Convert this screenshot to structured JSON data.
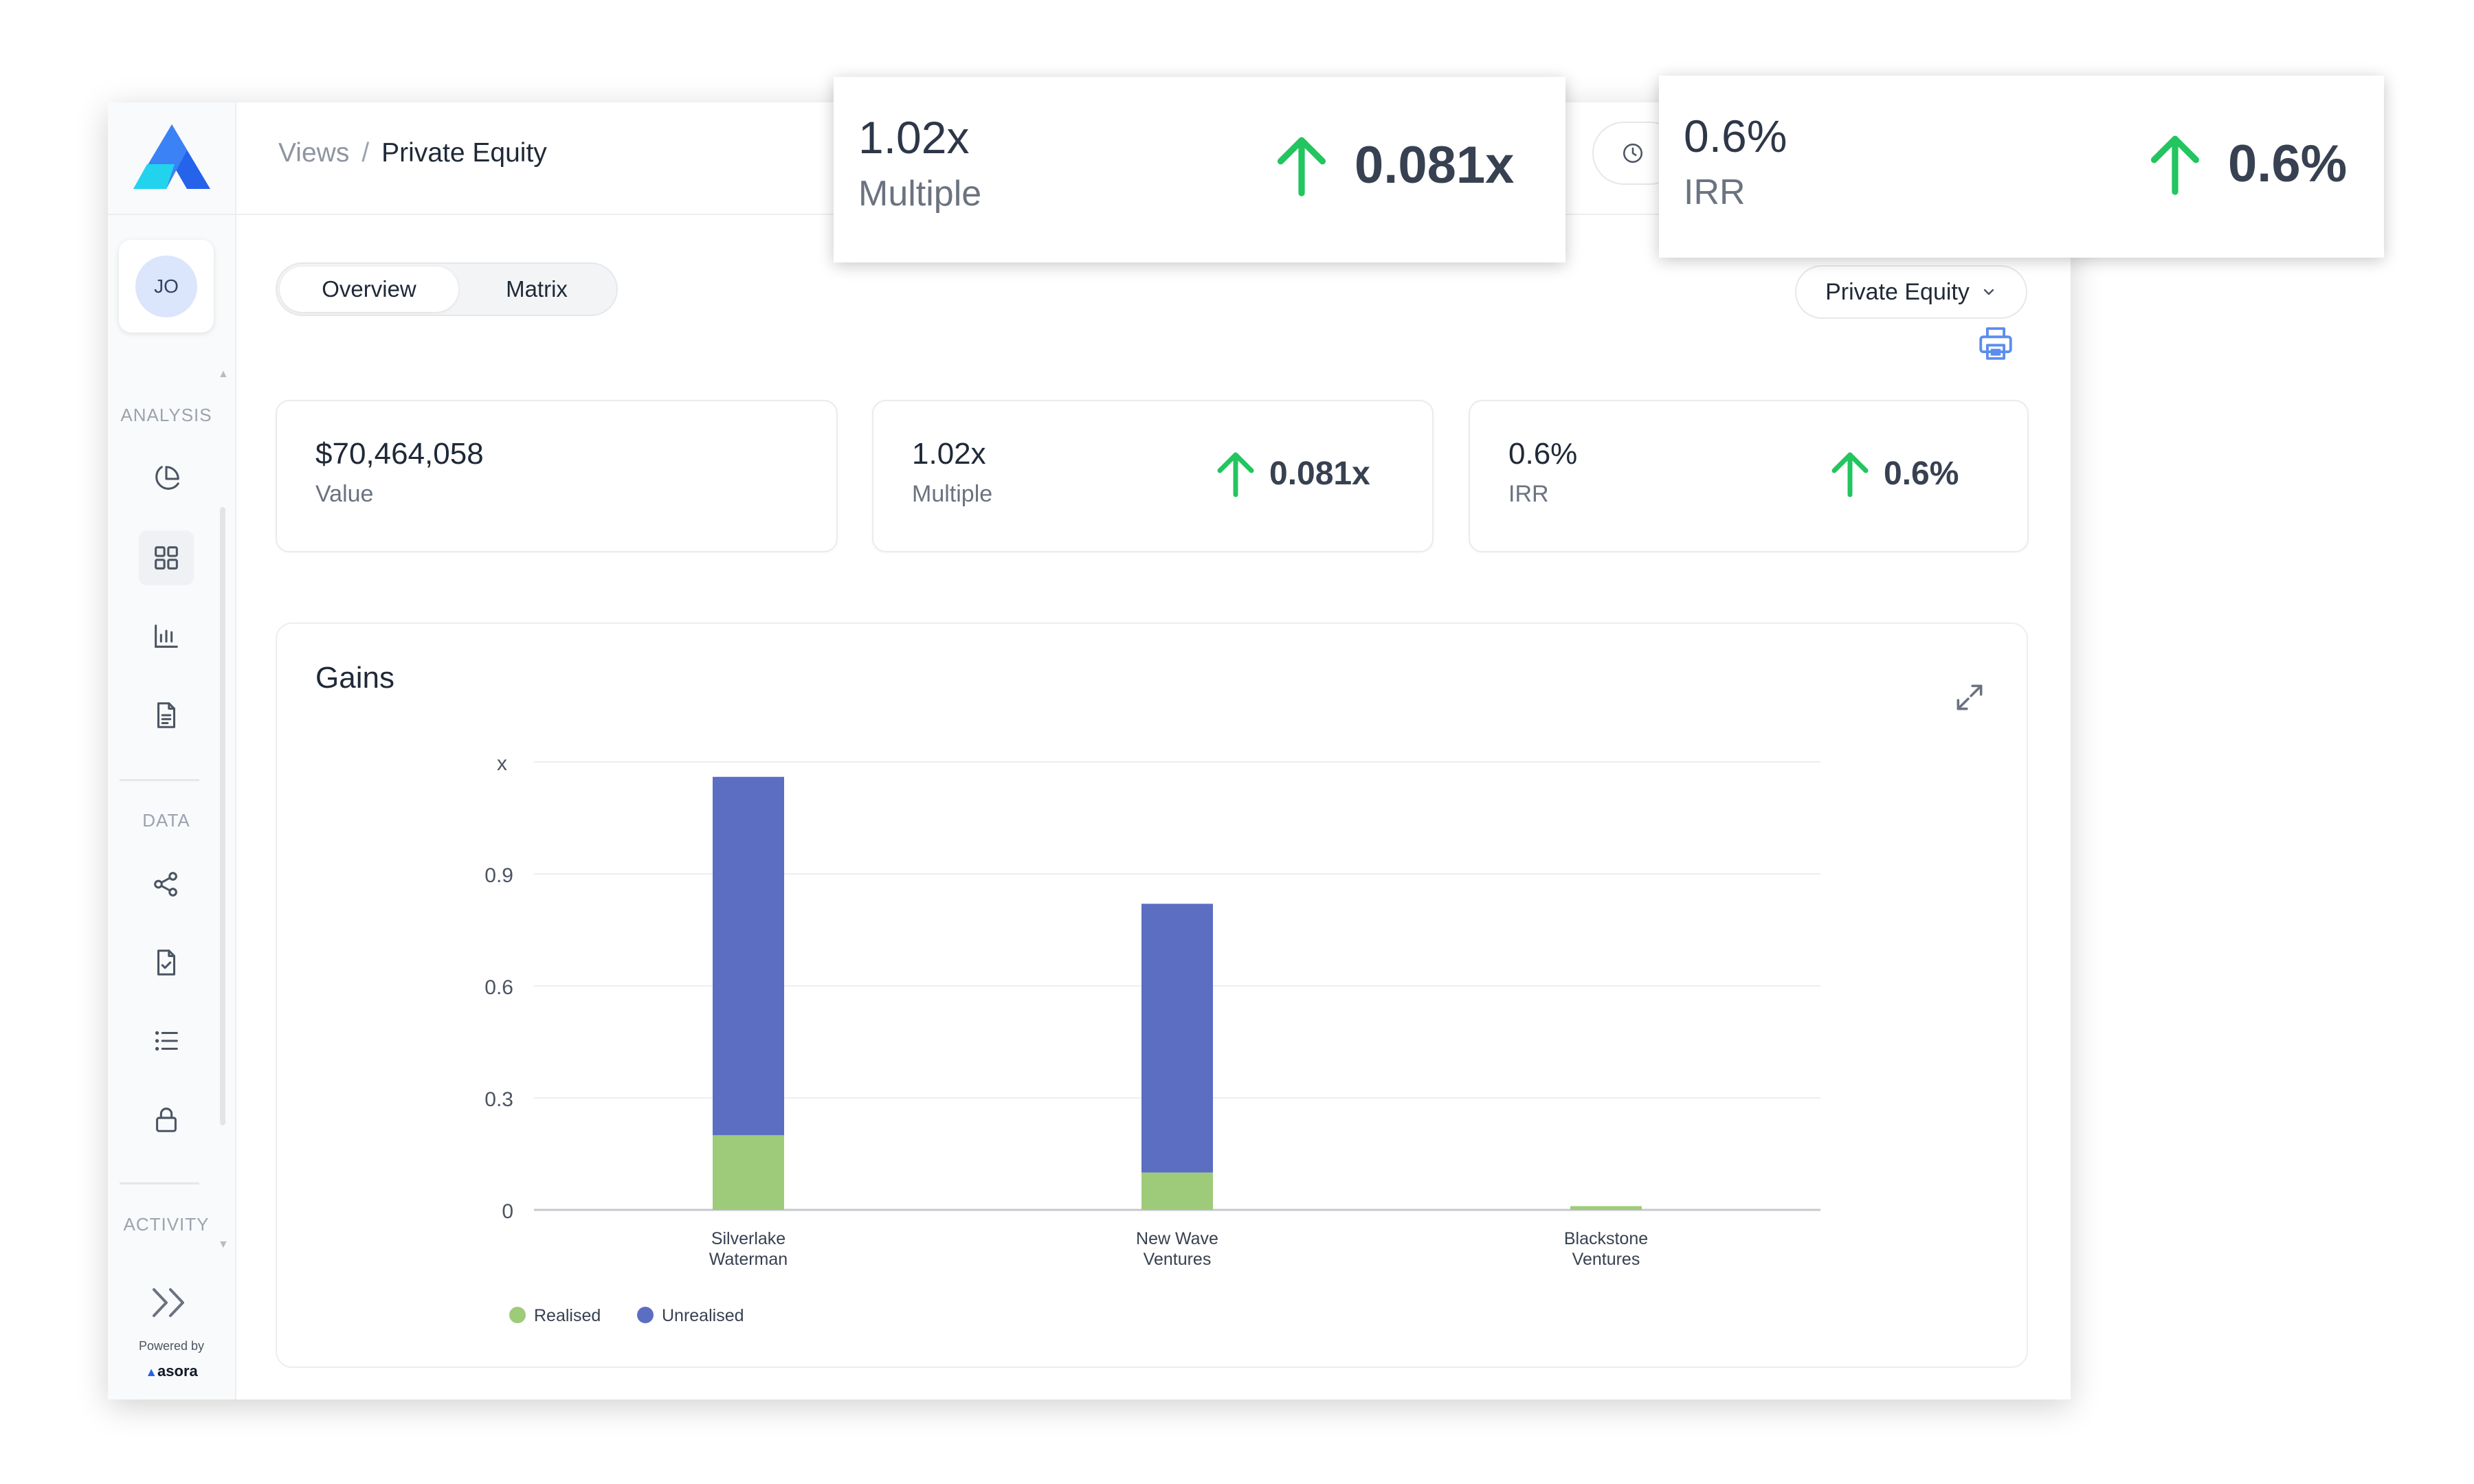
{
  "breadcrumb": {
    "root": "Views",
    "separator": "/",
    "current": "Private Equity"
  },
  "user": {
    "initials": "JO"
  },
  "sidebar": {
    "sections": [
      {
        "label": "ANALYSIS",
        "icons": [
          "pie-chart-icon",
          "dashboard-grid-icon",
          "bar-chart-icon",
          "report-document-icon"
        ]
      },
      {
        "label": "DATA",
        "icons": [
          "share-nodes-icon",
          "checklist-document-icon",
          "list-icon",
          "lock-icon"
        ]
      },
      {
        "label": "ACTIVITY",
        "icons": []
      }
    ],
    "active_icon": "dashboard-grid-icon",
    "powered_by": "Powered by",
    "brand": "asora"
  },
  "tabs": [
    {
      "label": "Overview",
      "active": true
    },
    {
      "label": "Matrix",
      "active": false
    }
  ],
  "portfolio_selector": {
    "value": "Private Equity"
  },
  "kpis": [
    {
      "value": "$70,464,058",
      "label": "Value"
    },
    {
      "value": "1.02x",
      "label": "Multiple",
      "delta": "0.081x",
      "trend": "up"
    },
    {
      "value": "0.6%",
      "label": "IRR",
      "delta": "0.6%",
      "trend": "up"
    }
  ],
  "tooltips": [
    {
      "value": "1.02x",
      "label": "Multiple",
      "delta": "0.081x",
      "trend": "up"
    },
    {
      "value": "0.6%",
      "label": "IRR",
      "delta": "0.6%",
      "trend": "up"
    }
  ],
  "chart_data": {
    "type": "bar",
    "stacked": true,
    "title": "Gains",
    "ylabel": "x",
    "xlabel": "",
    "categories": [
      "Silverlake Waterman",
      "New Wave Ventures",
      "Blackstone Ventures"
    ],
    "series": [
      {
        "name": "Realised",
        "color": "#9ecb7a",
        "values": [
          0.2,
          0.1,
          0.01
        ]
      },
      {
        "name": "Unrealised",
        "color": "#5b6ec2",
        "values": [
          0.96,
          0.72,
          0.0
        ]
      }
    ],
    "yticks": [
      "0",
      "0.3",
      "0.6",
      "0.9"
    ],
    "ylim": [
      0,
      1.2
    ],
    "legend_position": "bottom-left",
    "grid": true
  },
  "colors": {
    "up": "#22c55e",
    "logo": "#3b82f6",
    "print": "#5b8def"
  }
}
